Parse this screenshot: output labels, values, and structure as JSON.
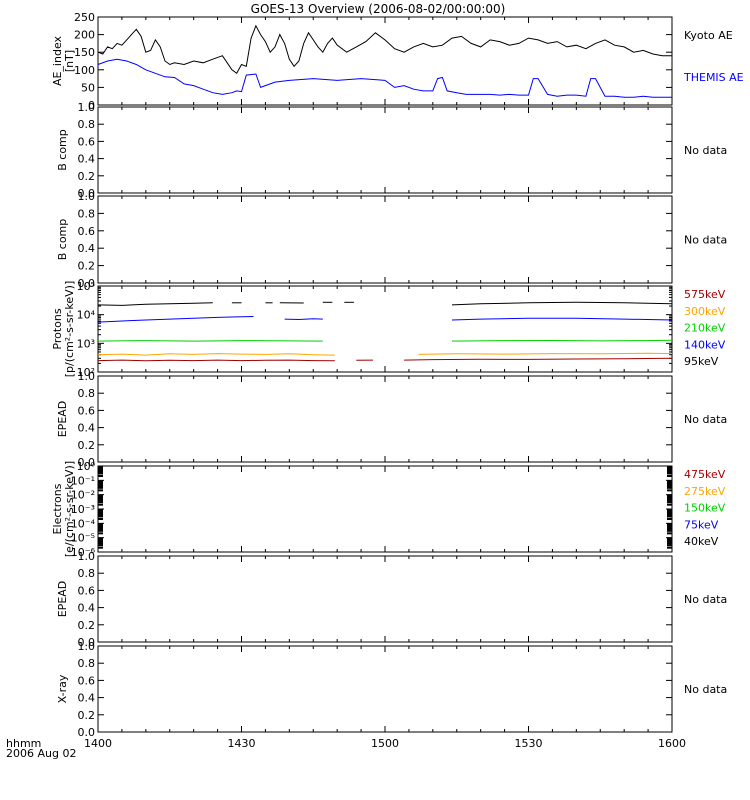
{
  "title": "GOES-13 Overview (2006-08-02/00:00:00)",
  "colors": {
    "black": "#000000",
    "blue": "#0000ff",
    "green": "#00d000",
    "orange": "#ffa500",
    "darkred": "#a00000"
  },
  "x_axis": {
    "ticks": [
      "1400",
      "1430",
      "1500",
      "1530",
      "1600"
    ],
    "tick_values": [
      0,
      30,
      60,
      90,
      120
    ],
    "unit_label": "hhmm",
    "date_label": "2006 Aug 02",
    "range": [
      0,
      120
    ]
  },
  "chart_data": [
    {
      "type": "line",
      "ylabel": [
        "AE_index",
        "[nT]"
      ],
      "ylim": [
        0,
        250
      ],
      "yticks": [
        "0",
        "50",
        "100",
        "150",
        "200",
        "250"
      ],
      "ytick_values": [
        0,
        50,
        100,
        150,
        200,
        250
      ],
      "scale": "linear",
      "series": [
        {
          "name": "Kyoto AE",
          "color": "#000000",
          "x": [
            0,
            1,
            2,
            3,
            4,
            5,
            6,
            7,
            8,
            9,
            10,
            11,
            12,
            13,
            14,
            15,
            16,
            18,
            20,
            22,
            24,
            26,
            27,
            28,
            29,
            30,
            31,
            32,
            33,
            34,
            35,
            36,
            37,
            38,
            39,
            40,
            41,
            42,
            43,
            44,
            45,
            46,
            47,
            48,
            49,
            50,
            52,
            54,
            56,
            58,
            60,
            62,
            64,
            66,
            68,
            70,
            72,
            74,
            76,
            78,
            80,
            82,
            84,
            86,
            88,
            90,
            92,
            94,
            96,
            98,
            100,
            102,
            104,
            106,
            108,
            110,
            112,
            114,
            116,
            118,
            120
          ],
          "y": [
            150,
            145,
            165,
            160,
            175,
            170,
            185,
            200,
            215,
            195,
            150,
            155,
            185,
            165,
            125,
            115,
            120,
            115,
            125,
            120,
            130,
            140,
            120,
            100,
            90,
            115,
            110,
            190,
            225,
            200,
            180,
            150,
            165,
            200,
            175,
            130,
            110,
            125,
            175,
            205,
            185,
            165,
            150,
            175,
            190,
            170,
            150,
            165,
            180,
            205,
            185,
            160,
            150,
            165,
            175,
            165,
            170,
            190,
            195,
            175,
            165,
            185,
            180,
            170,
            175,
            190,
            185,
            175,
            180,
            165,
            170,
            160,
            175,
            185,
            170,
            165,
            150,
            155,
            145,
            140,
            140
          ]
        },
        {
          "name": "THEMIS AE",
          "color": "#0000ff",
          "x": [
            0,
            2,
            4,
            6,
            8,
            10,
            12,
            14,
            16,
            18,
            20,
            22,
            24,
            26,
            28,
            29,
            30,
            31,
            33,
            34,
            35,
            37,
            40,
            45,
            50,
            55,
            60,
            62,
            64,
            66,
            68,
            70,
            71,
            72,
            73,
            75,
            77,
            78,
            80,
            82,
            84,
            86,
            88,
            90,
            91,
            92,
            94,
            96,
            98,
            100,
            102,
            103,
            104,
            106,
            108,
            110,
            112,
            114,
            116,
            118,
            120
          ],
          "y": [
            115,
            125,
            130,
            125,
            115,
            100,
            90,
            80,
            78,
            60,
            55,
            45,
            35,
            30,
            35,
            40,
            38,
            85,
            88,
            50,
            55,
            65,
            70,
            75,
            70,
            75,
            70,
            50,
            55,
            45,
            40,
            40,
            75,
            78,
            40,
            35,
            30,
            30,
            30,
            30,
            28,
            30,
            28,
            28,
            75,
            75,
            30,
            25,
            28,
            28,
            25,
            75,
            75,
            25,
            25,
            22,
            22,
            25,
            22,
            22,
            22
          ]
        }
      ]
    },
    {
      "type": "line",
      "ylabel": [
        "B comp"
      ],
      "ylim": [
        0,
        1
      ],
      "yticks": [
        "0.0",
        "0.2",
        "0.4",
        "0.6",
        "0.8",
        "1.0"
      ],
      "ytick_values": [
        0,
        0.2,
        0.4,
        0.6,
        0.8,
        1.0
      ],
      "scale": "linear",
      "note": "No data",
      "series": []
    },
    {
      "type": "line",
      "ylabel": [
        "B comp"
      ],
      "ylim": [
        0,
        1
      ],
      "yticks": [
        "0.0",
        "0.2",
        "0.4",
        "0.6",
        "0.8",
        "1.0"
      ],
      "ytick_values": [
        0,
        0.2,
        0.4,
        0.6,
        0.8,
        1.0
      ],
      "scale": "linear",
      "note": "No data",
      "series": []
    },
    {
      "type": "line",
      "ylabel": [
        "Protons",
        "[p/(cm²-s-sr-keV)]"
      ],
      "ylim": [
        100,
        100000
      ],
      "yticks": [
        "10²",
        "10³",
        "10⁴",
        "10⁵"
      ],
      "ytick_values": [
        100,
        1000,
        10000,
        100000
      ],
      "scale": "log",
      "series": [
        {
          "name": "575keV",
          "color": "#a00000",
          "segments": [
            {
              "x": [
                0,
                5,
                10,
                15,
                20,
                25,
                30,
                35,
                40,
                45,
                49.5
              ],
              "y": [
                250,
                260,
                245,
                255,
                250,
                260,
                250,
                255,
                260,
                250,
                245
              ]
            },
            {
              "x": [
                54,
                57.5
              ],
              "y": [
                255,
                260
              ]
            },
            {
              "x": [
                64,
                70,
                80,
                90,
                100,
                110,
                120
              ],
              "y": [
                260,
                270,
                280,
                275,
                285,
                290,
                300
              ]
            }
          ]
        },
        {
          "name": "300keV",
          "color": "#ffa500",
          "segments": [
            {
              "x": [
                0,
                5,
                10,
                15,
                20,
                25,
                30,
                35,
                40,
                45,
                49.5
              ],
              "y": [
                400,
                420,
                390,
                430,
                410,
                440,
                420,
                410,
                430,
                400,
                390
              ]
            },
            {
              "x": [
                67,
                75,
                85,
                95,
                105,
                115,
                120
              ],
              "y": [
                410,
                430,
                420,
                440,
                430,
                450,
                440
              ]
            }
          ]
        },
        {
          "name": "210keV",
          "color": "#00d000",
          "segments": [
            {
              "x": [
                0,
                10,
                20,
                30,
                40,
                47
              ],
              "y": [
                1200,
                1250,
                1200,
                1250,
                1220,
                1200
              ]
            },
            {
              "x": [
                74,
                85,
                95,
                105,
                115,
                120
              ],
              "y": [
                1200,
                1250,
                1260,
                1220,
                1250,
                1280
              ]
            }
          ]
        },
        {
          "name": "140keV",
          "color": "#0000ff",
          "segments": [
            {
              "x": [
                0,
                5,
                10,
                15,
                20,
                25,
                30,
                32.5
              ],
              "y": [
                5500,
                6000,
                6500,
                7000,
                7500,
                8000,
                8500,
                8600
              ]
            },
            {
              "x": [
                39,
                42,
                45,
                47
              ],
              "y": [
                7000,
                6800,
                7200,
                7000
              ]
            },
            {
              "x": [
                74,
                80,
                90,
                100,
                110,
                120
              ],
              "y": [
                6500,
                7000,
                7500,
                7500,
                7000,
                6500
              ]
            }
          ]
        },
        {
          "name": "95keV",
          "color": "#000000",
          "segments": [
            {
              "x": [
                0,
                5,
                10,
                15,
                20,
                24
              ],
              "y": [
                22000,
                21000,
                23000,
                24000,
                25000,
                26000
              ]
            },
            {
              "x": [
                28,
                30
              ],
              "y": [
                26000,
                26000
              ]
            },
            {
              "x": [
                35,
                36.5
              ],
              "y": [
                26000,
                26000
              ]
            },
            {
              "x": [
                38,
                43
              ],
              "y": [
                26000,
                25500
              ]
            },
            {
              "x": [
                47,
                49
              ],
              "y": [
                27000,
                27000
              ]
            },
            {
              "x": [
                51.5,
                53.5
              ],
              "y": [
                27000,
                27000
              ]
            },
            {
              "x": [
                74,
                80,
                90,
                100,
                110,
                120
              ],
              "y": [
                22000,
                24000,
                26000,
                27000,
                26000,
                24000
              ]
            }
          ]
        }
      ]
    },
    {
      "type": "line",
      "ylabel": [
        "EPEAD"
      ],
      "ylim": [
        0,
        1
      ],
      "yticks": [
        "0.0",
        "0.2",
        "0.4",
        "0.6",
        "0.8",
        "1.0"
      ],
      "ytick_values": [
        0,
        0.2,
        0.4,
        0.6,
        0.8,
        1.0
      ],
      "scale": "linear",
      "note": "No data",
      "series": []
    },
    {
      "type": "line",
      "ylabel": [
        "Electrons",
        "[e/(cm²-s-sr-keV)]"
      ],
      "ylim": [
        1e-06,
        1
      ],
      "yticks": [
        "10⁻⁶",
        "10⁻⁵",
        "10⁻⁴",
        "10⁻³",
        "10⁻²",
        "10⁻¹",
        "10⁰"
      ],
      "ytick_values": [
        1e-06,
        1e-05,
        0.0001,
        0.001,
        0.01,
        0.1,
        1
      ],
      "scale": "log",
      "series": [
        {
          "name": "475keV",
          "color": "#a00000",
          "segments": []
        },
        {
          "name": "275keV",
          "color": "#ffa500",
          "segments": []
        },
        {
          "name": "150keV",
          "color": "#00d000",
          "segments": []
        },
        {
          "name": "75keV",
          "color": "#0000ff",
          "segments": []
        },
        {
          "name": "40keV",
          "color": "#000000",
          "segments": []
        }
      ]
    },
    {
      "type": "line",
      "ylabel": [
        "EPEAD"
      ],
      "ylim": [
        0,
        1
      ],
      "yticks": [
        "0.0",
        "0.2",
        "0.4",
        "0.6",
        "0.8",
        "1.0"
      ],
      "ytick_values": [
        0,
        0.2,
        0.4,
        0.6,
        0.8,
        1.0
      ],
      "scale": "linear",
      "note": "No data",
      "series": []
    },
    {
      "type": "line",
      "ylabel": [
        "X-ray"
      ],
      "ylim": [
        0,
        1
      ],
      "yticks": [
        "0.0",
        "0.2",
        "0.4",
        "0.6",
        "0.8",
        "1.0"
      ],
      "ytick_values": [
        0,
        0.2,
        0.4,
        0.6,
        0.8,
        1.0
      ],
      "scale": "linear",
      "note": "No data",
      "series": []
    }
  ]
}
